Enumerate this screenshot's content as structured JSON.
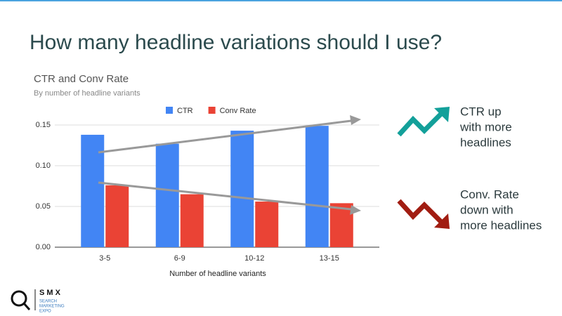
{
  "slide_title": "How many headline variations should I use?",
  "chart_data": {
    "type": "bar",
    "title": "CTR and Conv Rate",
    "subtitle": "By number of headline variants",
    "x_label": "Number of headline variants",
    "categories": [
      "3-5",
      "6-9",
      "10-12",
      "13-15"
    ],
    "series": [
      {
        "name": "CTR",
        "color": "#4285f4",
        "values": [
          0.138,
          0.127,
          0.143,
          0.149
        ]
      },
      {
        "name": "Conv Rate",
        "color": "#ea4335",
        "values": [
          0.076,
          0.065,
          0.056,
          0.054
        ]
      }
    ],
    "ylim": [
      0,
      0.15
    ],
    "yticks": [
      {
        "value": 0,
        "label": "0.00"
      },
      {
        "value": 0.05,
        "label": "0.05"
      },
      {
        "value": 0.1,
        "label": "0.10"
      },
      {
        "value": 0.15,
        "label": "0.15"
      }
    ],
    "grid": true,
    "legend": "top"
  },
  "annotations": [
    {
      "lines": [
        "CTR up",
        "with more",
        "headlines"
      ]
    },
    {
      "lines": [
        "Conv. Rate",
        "down with",
        "more headlines"
      ]
    }
  ],
  "logo": {
    "name": "S M X",
    "tagline": [
      "SEARCH",
      "MARKETING",
      "EXPO"
    ]
  }
}
